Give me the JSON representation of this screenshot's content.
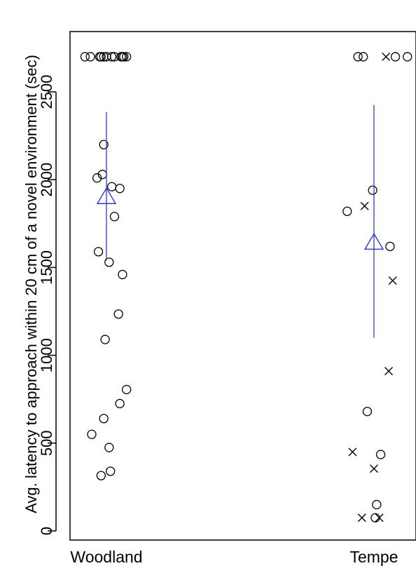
{
  "chart_data": {
    "type": "scatter",
    "title": "",
    "ylabel": "Avg. latency to approach within 20 cm of a novel environment (sec)",
    "xlabel": "",
    "categories": [
      "Woodland",
      "Tempe"
    ],
    "y_ticks": [
      "0",
      "500",
      "1000",
      "1500",
      "2000",
      "2500"
    ],
    "y_tick_values": [
      0,
      500,
      1000,
      1500,
      2000,
      2500
    ],
    "ylim": [
      0,
      2700
    ],
    "grid": false,
    "legend": "none",
    "colors": {
      "points": "#000000",
      "summary": "#2d3bd1",
      "axis": "#000000"
    },
    "series": [
      {
        "group": "Woodland",
        "marker": "circle",
        "points": [
          {
            "x": 0.92,
            "y": 2700
          },
          {
            "x": 0.94,
            "y": 2700
          },
          {
            "x": 0.975,
            "y": 2700
          },
          {
            "x": 0.98,
            "y": 2700
          },
          {
            "x": 0.99,
            "y": 2700
          },
          {
            "x": 1.0,
            "y": 2700
          },
          {
            "x": 1.02,
            "y": 2700
          },
          {
            "x": 1.03,
            "y": 2700
          },
          {
            "x": 1.055,
            "y": 2700
          },
          {
            "x": 1.06,
            "y": 2700
          },
          {
            "x": 1.065,
            "y": 2700
          },
          {
            "x": 1.075,
            "y": 2700
          },
          {
            "x": 0.99,
            "y": 2200
          },
          {
            "x": 0.985,
            "y": 2030
          },
          {
            "x": 0.965,
            "y": 2010
          },
          {
            "x": 1.02,
            "y": 1960
          },
          {
            "x": 1.05,
            "y": 1950
          },
          {
            "x": 1.03,
            "y": 1790
          },
          {
            "x": 0.97,
            "y": 1590
          },
          {
            "x": 1.01,
            "y": 1530
          },
          {
            "x": 1.06,
            "y": 1460
          },
          {
            "x": 1.045,
            "y": 1235
          },
          {
            "x": 0.995,
            "y": 1090
          },
          {
            "x": 1.075,
            "y": 805
          },
          {
            "x": 1.05,
            "y": 725
          },
          {
            "x": 0.99,
            "y": 640
          },
          {
            "x": 0.945,
            "y": 550
          },
          {
            "x": 1.01,
            "y": 475
          },
          {
            "x": 1.015,
            "y": 340
          },
          {
            "x": 0.98,
            "y": 315
          }
        ]
      },
      {
        "group": "Tempe",
        "marker": "circle",
        "points": [
          {
            "x": 1.94,
            "y": 2700
          },
          {
            "x": 1.96,
            "y": 2700
          },
          {
            "x": 2.08,
            "y": 2700
          },
          {
            "x": 2.125,
            "y": 2700
          },
          {
            "x": 1.995,
            "y": 1940
          },
          {
            "x": 1.9,
            "y": 1820
          },
          {
            "x": 2.06,
            "y": 1620
          },
          {
            "x": 1.975,
            "y": 680
          },
          {
            "x": 2.025,
            "y": 435
          },
          {
            "x": 2.01,
            "y": 150
          },
          {
            "x": 2.005,
            "y": 75
          }
        ]
      },
      {
        "group": "Tempe",
        "marker": "cross",
        "points": [
          {
            "x": 2.045,
            "y": 2700
          },
          {
            "x": 1.965,
            "y": 1850
          },
          {
            "x": 2.07,
            "y": 1425
          },
          {
            "x": 2.055,
            "y": 910
          },
          {
            "x": 1.92,
            "y": 450
          },
          {
            "x": 2.0,
            "y": 355
          },
          {
            "x": 1.955,
            "y": 75
          },
          {
            "x": 2.02,
            "y": 75
          }
        ]
      }
    ],
    "summary": [
      {
        "group": "Woodland",
        "x": 1.0,
        "mean": 1900,
        "lower": 1540,
        "upper": 2385
      },
      {
        "group": "Tempe",
        "x": 2.0,
        "mean": 1640,
        "lower": 1100,
        "upper": 2425
      }
    ]
  }
}
